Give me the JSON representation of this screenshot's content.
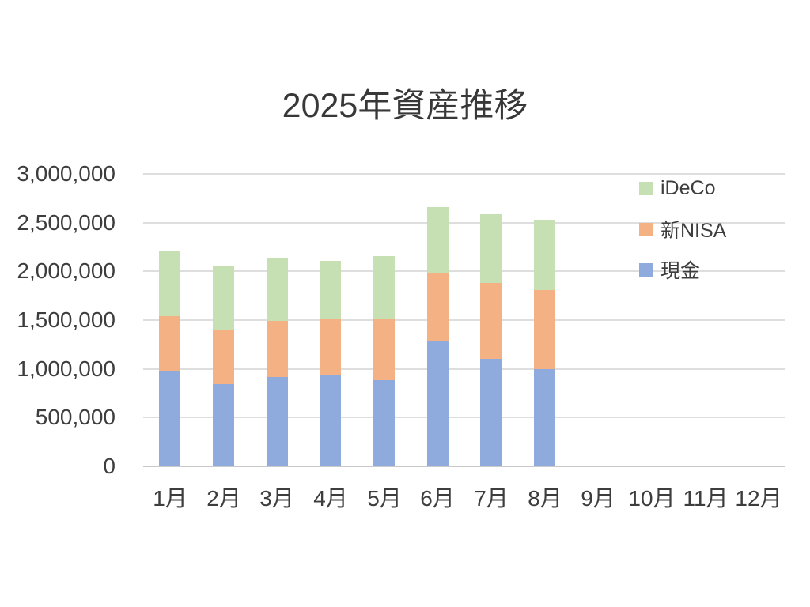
{
  "chart_data": {
    "type": "bar",
    "stacked": true,
    "title": "2025年資産推移",
    "categories": [
      "1月",
      "2月",
      "3月",
      "4月",
      "5月",
      "6月",
      "7月",
      "8月",
      "9月",
      "10月",
      "11月",
      "12月"
    ],
    "series": [
      {
        "name": "現金",
        "color": "#8FAADC",
        "values": [
          980000,
          840000,
          920000,
          940000,
          880000,
          1280000,
          1100000,
          1000000,
          0,
          0,
          0,
          0
        ]
      },
      {
        "name": "新NISA",
        "color": "#F4B183",
        "values": [
          560000,
          560000,
          570000,
          570000,
          640000,
          710000,
          780000,
          810000,
          0,
          0,
          0,
          0
        ]
      },
      {
        "name": "iDeCo",
        "color": "#C6E0B4",
        "values": [
          670000,
          650000,
          640000,
          600000,
          640000,
          670000,
          710000,
          720000,
          0,
          0,
          0,
          0
        ]
      }
    ],
    "totals": [
      2210000,
      2050000,
      2130000,
      2110000,
      2160000,
      2660000,
      2590000,
      2530000,
      0,
      0,
      0,
      0
    ],
    "y_axis": {
      "min": 0,
      "max": 3000000,
      "step": 500000,
      "tick_labels": [
        "0",
        "500,000",
        "1,000,000",
        "1,500,000",
        "2,000,000",
        "2,500,000",
        "3,000,000"
      ]
    },
    "x_axis": {
      "tick_labels": [
        "1月",
        "2月",
        "3月",
        "4月",
        "5月",
        "6月",
        "7月",
        "8月",
        "9月",
        "10月",
        "11月",
        "12月"
      ]
    },
    "legend": {
      "position": "top-right",
      "entries": [
        {
          "label": "iDeCo",
          "color": "#C6E0B4"
        },
        {
          "label": "新NISA",
          "color": "#F4B183"
        },
        {
          "label": "現金",
          "color": "#8FAADC"
        }
      ]
    },
    "grid": true,
    "colors": {
      "gridline": "#DEDEDE",
      "axis_line": "#C9C9C9",
      "text": "#3D3D3D"
    }
  }
}
